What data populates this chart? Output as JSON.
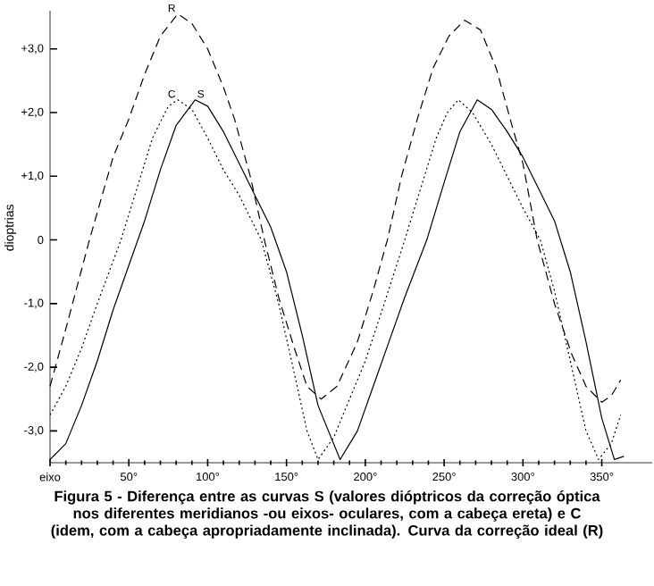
{
  "chart_data": {
    "type": "line",
    "ylabel": "dioptrias",
    "annotations": [
      "Figura 5 - Diferença entre as curvas S (valores dióptricos da correção óptica nos diferentes meridianos -ou eixos- oculares, com a cabeça ereta) e C (idem, com a cabeça apropriadamente inclinada). Curva da correção ideal (R)"
    ],
    "xlim": [
      0,
      382
    ],
    "ylim": [
      -3.5,
      3.6
    ],
    "xticks": [
      {
        "value": 0,
        "label": "eixo"
      },
      {
        "value": 50,
        "label": "50°"
      },
      {
        "value": 100,
        "label": "100°"
      },
      {
        "value": 150,
        "label": "150°"
      },
      {
        "value": 200,
        "label": "200°"
      },
      {
        "value": 250,
        "label": "250°"
      },
      {
        "value": 300,
        "label": "300°"
      },
      {
        "value": 350,
        "label": "350°"
      }
    ],
    "yticks": [
      {
        "value": 3,
        "label": "+3,0"
      },
      {
        "value": 2,
        "label": "+2,0"
      },
      {
        "value": 1,
        "label": "+1,0"
      },
      0,
      {
        "value": -1,
        "label": "-1,0"
      },
      {
        "value": -2,
        "label": "-2,0"
      },
      {
        "value": -3,
        "label": "-3,0"
      }
    ],
    "grid": false,
    "series": [
      {
        "name": "R",
        "color": "#000000",
        "line_style": "dashed",
        "x": [
          0,
          10,
          25,
          40,
          50,
          60,
          70,
          81,
          90,
          100,
          110,
          117,
          127,
          136,
          145,
          155,
          163,
          172,
          182,
          195,
          205,
          214,
          223,
          233,
          243,
          253,
          263,
          273,
          283,
          293,
          300,
          309,
          320,
          331,
          340,
          350,
          356,
          362
        ],
        "values": [
          -2.3,
          -1.4,
          0,
          1.3,
          1.9,
          2.6,
          3.2,
          3.55,
          3.4,
          3.0,
          2.4,
          1.9,
          1.0,
          0,
          -0.9,
          -1.7,
          -2.3,
          -2.5,
          -2.3,
          -1.6,
          -0.8,
          0,
          1.0,
          1.9,
          2.7,
          3.2,
          3.45,
          3.3,
          2.7,
          1.8,
          1.2,
          0,
          -1.0,
          -1.8,
          -2.3,
          -2.55,
          -2.45,
          -2.2
        ]
      },
      {
        "name": "C",
        "color": "#000000",
        "line_style": "dotted",
        "x": [
          0,
          10,
          20,
          30,
          45,
          55,
          65,
          75,
          81,
          90,
          100,
          110,
          120,
          134,
          145,
          155,
          163,
          170,
          180,
          190,
          200,
          212,
          225,
          235,
          245,
          252,
          259,
          268,
          280,
          290,
          300,
          311,
          320,
          330,
          340,
          348,
          356,
          362
        ],
        "values": [
          -2.75,
          -2.3,
          -1.7,
          -1.0,
          0,
          0.8,
          1.6,
          2.1,
          2.2,
          2.05,
          1.6,
          1.1,
          0.7,
          0,
          -1.0,
          -2.1,
          -3.0,
          -3.45,
          -3.1,
          -2.5,
          -1.9,
          -1.0,
          0,
          0.8,
          1.6,
          2.0,
          2.2,
          2.0,
          1.5,
          1.0,
          0.5,
          0,
          -0.8,
          -1.9,
          -3.0,
          -3.45,
          -3.2,
          -2.75
        ]
      },
      {
        "name": "S",
        "color": "#000000",
        "line_style": "solid",
        "x": [
          0,
          10,
          20,
          30,
          40,
          50,
          60,
          70,
          80,
          92,
          100,
          110,
          120,
          130,
          140,
          150,
          160,
          170,
          184,
          195,
          205,
          215,
          225,
          239,
          250,
          260,
          271,
          280,
          290,
          300,
          310,
          320,
          330,
          340,
          350,
          358,
          364
        ],
        "values": [
          -3.45,
          -3.2,
          -2.6,
          -1.9,
          -1.1,
          -0.4,
          0.3,
          1.1,
          1.8,
          2.2,
          2.1,
          1.7,
          1.2,
          0.7,
          0.2,
          -0.5,
          -1.5,
          -2.6,
          -3.45,
          -3.0,
          -2.3,
          -1.6,
          -0.9,
          0,
          0.9,
          1.7,
          2.2,
          2.05,
          1.7,
          1.3,
          0.8,
          0.3,
          -0.5,
          -1.6,
          -2.8,
          -3.45,
          -3.4
        ]
      }
    ]
  }
}
